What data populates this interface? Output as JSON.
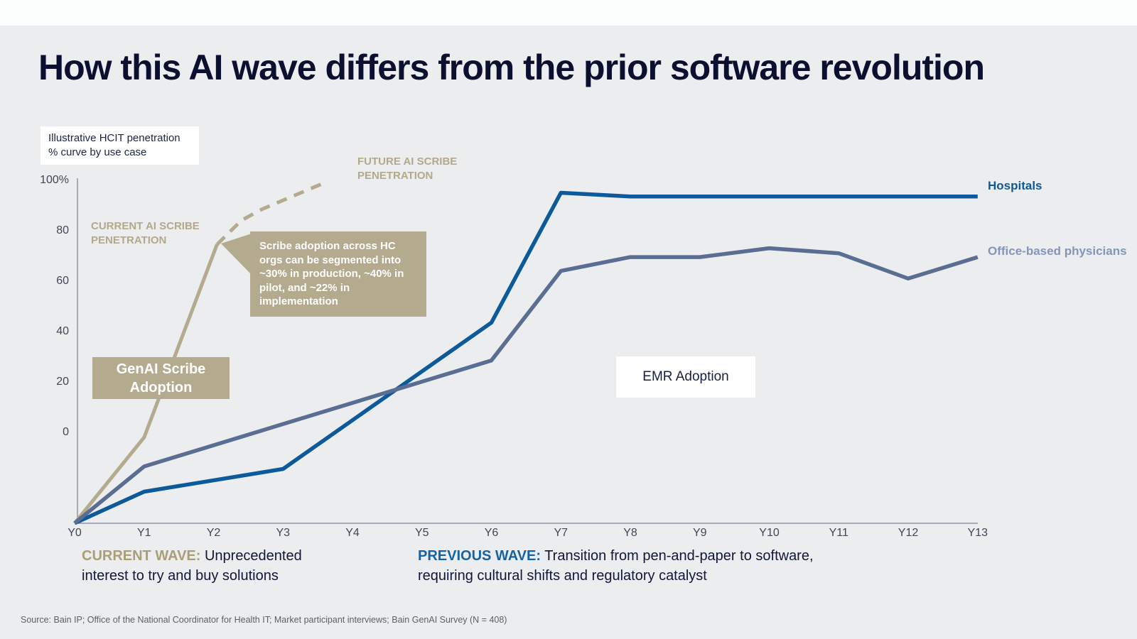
{
  "slide": {
    "title": "How this AI wave differs from the prior software revolution",
    "axis_note": "Illustrative HCIT penetration % curve by use case",
    "source": "Source: Bain IP; Office of the National Coordinator for Health IT; Market participant interviews; Bain GenAI Survey (N = 408)"
  },
  "annotations": {
    "current_ai": "CURRENT AI SCRIBE PENETRATION",
    "future_ai": "FUTURE AI SCRIBE PENETRATION",
    "callout": "Scribe adoption across HC orgs can be segmented  into ~30% in production, ~40% in pilot, and ~22% in implementation",
    "genai_box": "GenAI Scribe Adoption",
    "emr_box": "EMR Adoption",
    "legend_hospitals": "Hospitals",
    "legend_office": "Office-based physicians"
  },
  "notes": {
    "current_label": "CURRENT WAVE:",
    "current_text": " Unprecedented interest to try and buy solutions",
    "previous_label": "PREVIOUS WAVE:",
    "previous_text": " Transition from pen-and-paper to software, requiring cultural shifts and regulatory catalyst"
  },
  "colors": {
    "background": "#ecedee",
    "tan": "#b4aa8e",
    "hospitals_blue": "#0d5a9a",
    "office_slate": "#5a6d92",
    "office_label": "#8396ba",
    "navy_text": "#0c1030",
    "previous_wave_blue": "#1463a5",
    "current_wave_gold": "#ab9e76"
  },
  "chart_data": {
    "type": "line",
    "title": "Illustrative HCIT penetration % curve by use case",
    "xlabel": "",
    "ylabel": "Penetration %",
    "grid": false,
    "legend_position": "right-of-line-ends",
    "x_tick_labels": [
      "Y0",
      "Y1",
      "Y2",
      "Y3",
      "Y4",
      "Y5",
      "Y6",
      "Y7",
      "Y8",
      "Y9",
      "Y10",
      "Y11",
      "Y12",
      "Y13"
    ],
    "y_ticks": [
      {
        "label": "100%",
        "value": 100
      },
      {
        "label": "80",
        "value": 80
      },
      {
        "label": "60",
        "value": 60
      },
      {
        "label": "40",
        "value": 40
      },
      {
        "label": "20",
        "value": 20
      },
      {
        "label": "0",
        "value": 0
      }
    ],
    "ylim_labeled": [
      0,
      100
    ],
    "ylim_drawn": [
      -36,
      100
    ],
    "note": "All curves originate at the axis corner, which sits below the labeled 0% line (illustrative curve).",
    "series": [
      {
        "id": "genai-scribe-current",
        "name": "Current AI scribe penetration (GenAI Scribe Adoption)",
        "style": "solid",
        "color": "#b4aa8e",
        "width": 5,
        "points": [
          [
            0,
            -36
          ],
          [
            1,
            -2
          ],
          [
            2.05,
            74.5
          ]
        ]
      },
      {
        "id": "genai-scribe-future",
        "name": "Future AI scribe penetration (projected)",
        "style": "dashed",
        "color": "#b4aa8e",
        "width": 5,
        "points": [
          [
            2.05,
            74.5
          ],
          [
            2.4,
            84
          ],
          [
            2.7,
            88.5
          ],
          [
            3,
            92
          ],
          [
            3.3,
            95.5
          ],
          [
            3.6,
            99
          ]
        ]
      },
      {
        "id": "hospitals",
        "name": "Hospitals (EMR Adoption)",
        "style": "solid",
        "color": "#0d5a9a",
        "width": 5.5,
        "points": [
          [
            0,
            -36
          ],
          [
            1,
            -23.5
          ],
          [
            3,
            -14.5
          ],
          [
            6,
            43.5
          ],
          [
            7,
            95
          ],
          [
            8,
            93.5
          ],
          [
            13,
            93.5
          ]
        ]
      },
      {
        "id": "office-physicians",
        "name": "Office-based physicians (EMR Adoption)",
        "style": "solid",
        "color": "#5a6d92",
        "width": 5.5,
        "points": [
          [
            0,
            -36
          ],
          [
            1,
            -13.5
          ],
          [
            6,
            28.5
          ],
          [
            7,
            64
          ],
          [
            8,
            69.5
          ],
          [
            9,
            69.5
          ],
          [
            10,
            73
          ],
          [
            11,
            71
          ],
          [
            12,
            61
          ],
          [
            13,
            69.5
          ]
        ]
      }
    ]
  }
}
